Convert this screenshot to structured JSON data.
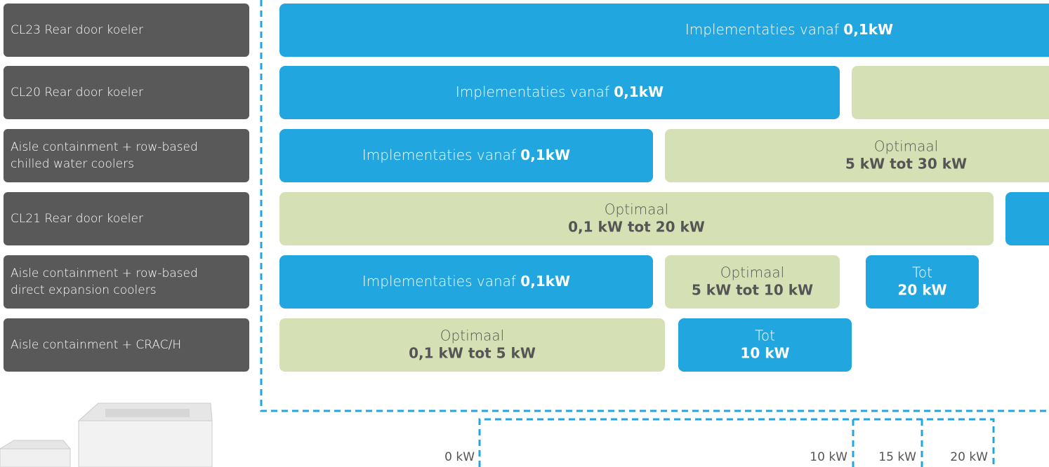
{
  "rows": [
    {
      "label": [
        "CL23 Rear door koeler"
      ],
      "segments": [
        {
          "text": "Implementaties vanaf",
          "bold": "0,1kW"
        }
      ]
    },
    {
      "label": [
        "CL20 Rear door koeler"
      ],
      "segments": [
        {
          "text": "Implementaties vanaf",
          "bold": "0,1kW"
        }
      ]
    },
    {
      "label": [
        "Aisle containment + row-based",
        "chilled water coolers"
      ],
      "segments": [
        {
          "text": "Implementaties vanaf",
          "bold": "0,1kW"
        },
        {
          "text": "Optimaal",
          "bold": "5 kW tot 30 kW"
        }
      ]
    },
    {
      "label": [
        "CL21 Rear door koeler"
      ],
      "segments": [
        {
          "text": "Optimaal",
          "bold": "0,1 kW tot 20 kW"
        }
      ]
    },
    {
      "label": [
        "Aisle containment + row-based",
        "direct expansion coolers"
      ],
      "segments": [
        {
          "text": "Implementaties vanaf",
          "bold": "0,1kW"
        },
        {
          "text": "Optimaal",
          "bold": "5 kW tot 10 kW"
        },
        {
          "text": "Tot",
          "bold": "20 kW"
        }
      ]
    },
    {
      "label": [
        "Aisle containment + CRAC/H"
      ],
      "segments": [
        {
          "text": "Optimaal",
          "bold": "0,1 kW tot 5 kW"
        },
        {
          "text": "Tot",
          "bold": "10 kW"
        }
      ]
    }
  ],
  "axis": [
    "0 kW",
    "10 kW",
    "15 kW",
    "20 kW"
  ]
}
